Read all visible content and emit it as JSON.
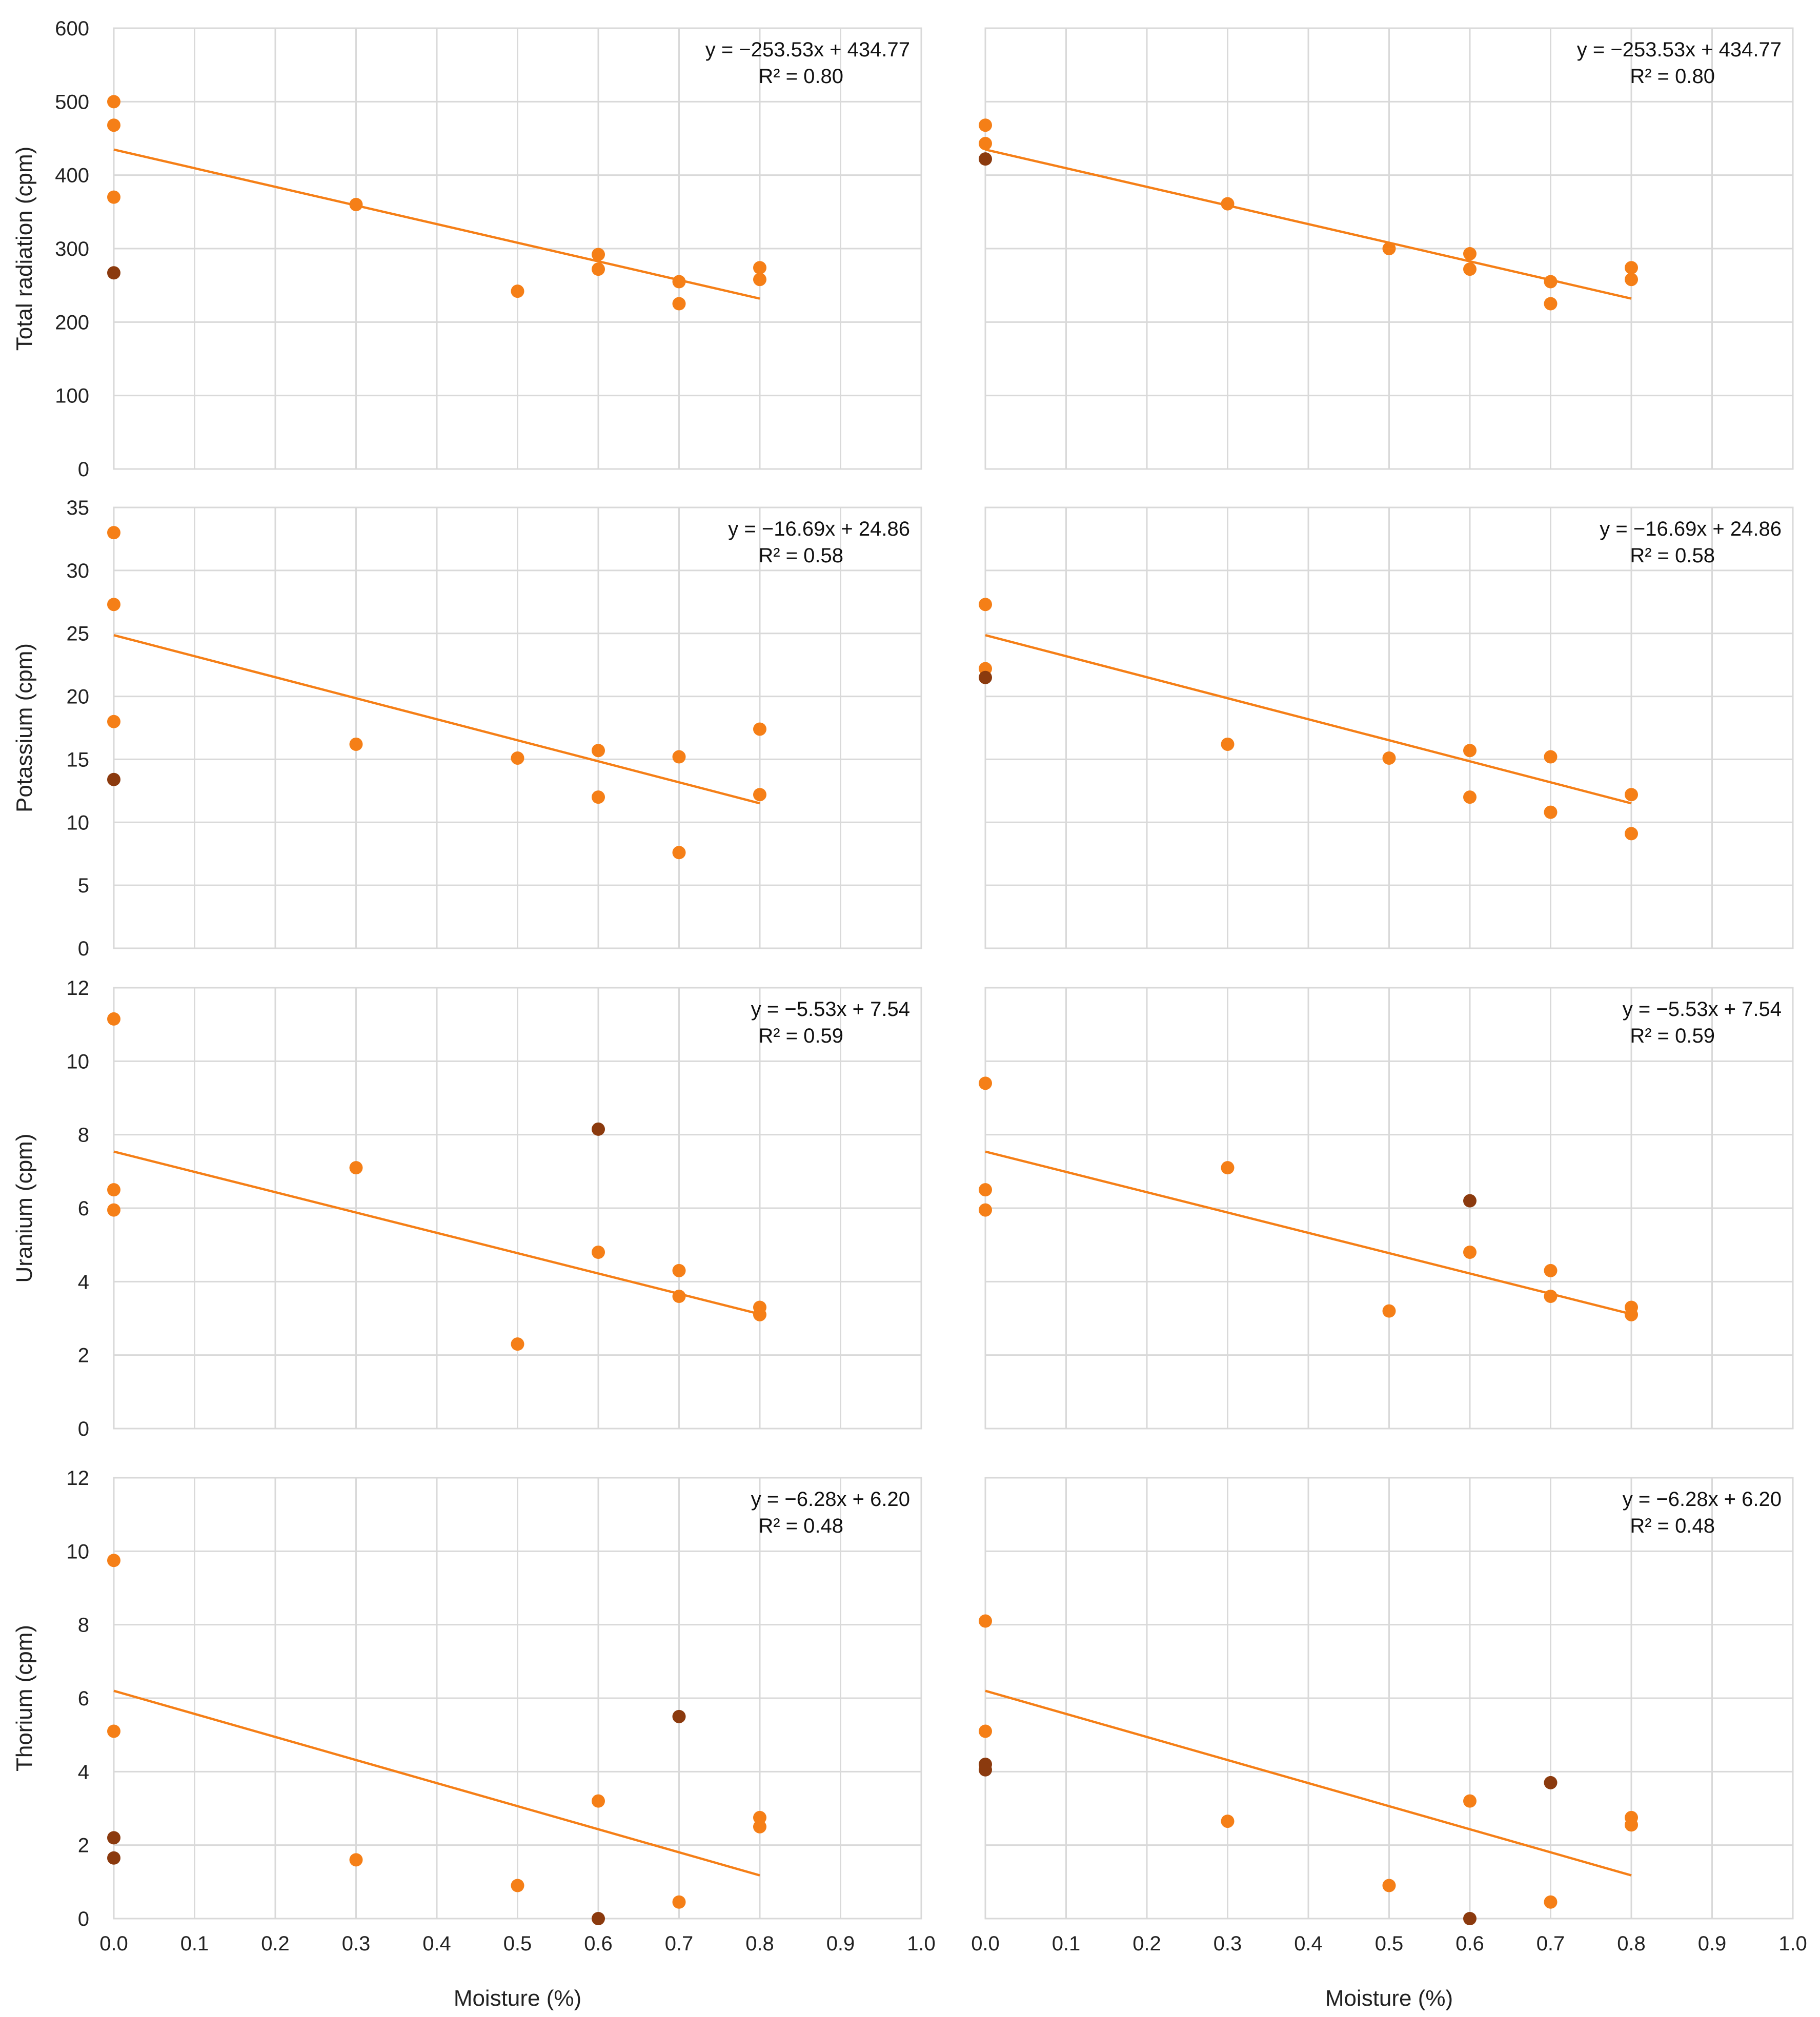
{
  "colors": {
    "point": "#F57F17",
    "highlight": "#8B3A0E",
    "trend": "#F57F17",
    "grid": "#d9d9d9"
  },
  "x_ticks": [
    "0.0",
    "0.1",
    "0.2",
    "0.3",
    "0.4",
    "0.5",
    "0.6",
    "0.7",
    "0.8",
    "0.9",
    "1.0"
  ],
  "chart_data": [
    {
      "type": "scatter",
      "panel": "top-left",
      "ylabel": "Total radiation (cpm)",
      "xlabel": "",
      "xlim": [
        0,
        1
      ],
      "ylim": [
        0,
        600
      ],
      "y_ticks": [
        "0",
        "100",
        "200",
        "300",
        "400",
        "500",
        "600"
      ],
      "equation": "y = −253.53x + 434.77",
      "r2": "R² = 0.80",
      "trend": {
        "slope": -253.53,
        "intercept": 434.77,
        "x_range": [
          0,
          0.8
        ]
      },
      "points": [
        [
          0,
          500
        ],
        [
          0,
          468
        ],
        [
          0,
          370
        ],
        [
          0.3,
          360
        ],
        [
          0.5,
          242
        ],
        [
          0.6,
          292
        ],
        [
          0.6,
          272
        ],
        [
          0.7,
          255
        ],
        [
          0.7,
          225
        ],
        [
          0.8,
          274
        ],
        [
          0.8,
          258
        ]
      ],
      "highlighted_points": [
        [
          0,
          267
        ]
      ]
    },
    {
      "type": "scatter",
      "panel": "top-right",
      "ylabel": "",
      "xlabel": "",
      "xlim": [
        0,
        1
      ],
      "ylim": [
        0,
        600
      ],
      "equation": "y = −253.53x + 434.77",
      "r2": "R² = 0.80",
      "trend": {
        "slope": -253.53,
        "intercept": 434.77,
        "x_range": [
          0,
          0.8
        ]
      },
      "points": [
        [
          0,
          468
        ],
        [
          0,
          443
        ],
        [
          0.3,
          361
        ],
        [
          0.5,
          300
        ],
        [
          0.6,
          293
        ],
        [
          0.6,
          272
        ],
        [
          0.7,
          255
        ],
        [
          0.7,
          225
        ],
        [
          0.8,
          274
        ],
        [
          0.8,
          258
        ]
      ],
      "highlighted_points": [
        [
          0,
          422
        ]
      ]
    },
    {
      "type": "scatter",
      "panel": "row2-left",
      "ylabel": "Potassium (cpm)",
      "xlabel": "",
      "xlim": [
        0,
        1
      ],
      "ylim": [
        0,
        35
      ],
      "y_ticks": [
        "0",
        "5",
        "10",
        "15",
        "20",
        "25",
        "30",
        "35"
      ],
      "equation": "y = −16.69x + 24.86",
      "r2": "R² = 0.58",
      "trend": {
        "slope": -16.69,
        "intercept": 24.86,
        "x_range": [
          0,
          0.8
        ]
      },
      "points": [
        [
          0,
          33
        ],
        [
          0,
          27.3
        ],
        [
          0,
          18
        ],
        [
          0.3,
          16.2
        ],
        [
          0.5,
          15.1
        ],
        [
          0.6,
          15.7
        ],
        [
          0.6,
          12
        ],
        [
          0.7,
          15.2
        ],
        [
          0.7,
          7.6
        ],
        [
          0.8,
          17.4
        ],
        [
          0.8,
          12.2
        ]
      ],
      "highlighted_points": [
        [
          0,
          13.4
        ]
      ]
    },
    {
      "type": "scatter",
      "panel": "row2-right",
      "ylabel": "",
      "xlabel": "",
      "xlim": [
        0,
        1
      ],
      "ylim": [
        0,
        35
      ],
      "equation": "y = −16.69x + 24.86",
      "r2": "R² = 0.58",
      "trend": {
        "slope": -16.69,
        "intercept": 24.86,
        "x_range": [
          0,
          0.8
        ]
      },
      "points": [
        [
          0,
          27.3
        ],
        [
          0,
          22.2
        ],
        [
          0.3,
          16.2
        ],
        [
          0.5,
          15.1
        ],
        [
          0.6,
          15.7
        ],
        [
          0.6,
          12
        ],
        [
          0.7,
          15.2
        ],
        [
          0.7,
          10.8
        ],
        [
          0.8,
          12.2
        ],
        [
          0.8,
          9.1
        ]
      ],
      "highlighted_points": [
        [
          0,
          21.5
        ]
      ]
    },
    {
      "type": "scatter",
      "panel": "row3-left",
      "ylabel": "Uranium (cpm)",
      "xlabel": "",
      "xlim": [
        0,
        1
      ],
      "ylim": [
        0,
        12
      ],
      "y_ticks": [
        "0",
        "2",
        "4",
        "6",
        "8",
        "10",
        "12"
      ],
      "equation": "y = −5.53x + 7.54",
      "r2": "R² = 0.59",
      "trend": {
        "slope": -5.53,
        "intercept": 7.54,
        "x_range": [
          0,
          0.8
        ]
      },
      "points": [
        [
          0,
          11.15
        ],
        [
          0,
          6.5
        ],
        [
          0,
          5.95
        ],
        [
          0.3,
          7.1
        ],
        [
          0.5,
          2.3
        ],
        [
          0.6,
          4.8
        ],
        [
          0.7,
          4.3
        ],
        [
          0.7,
          3.6
        ],
        [
          0.8,
          3.3
        ],
        [
          0.8,
          3.1
        ]
      ],
      "highlighted_points": [
        [
          0.6,
          8.15
        ]
      ]
    },
    {
      "type": "scatter",
      "panel": "row3-right",
      "ylabel": "",
      "xlabel": "",
      "xlim": [
        0,
        1
      ],
      "ylim": [
        0,
        12
      ],
      "equation": "y = −5.53x + 7.54",
      "r2": "R² = 0.59",
      "trend": {
        "slope": -5.53,
        "intercept": 7.54,
        "x_range": [
          0,
          0.8
        ]
      },
      "points": [
        [
          0,
          9.4
        ],
        [
          0,
          6.5
        ],
        [
          0,
          5.95
        ],
        [
          0.3,
          7.1
        ],
        [
          0.5,
          3.2
        ],
        [
          0.6,
          4.8
        ],
        [
          0.7,
          4.3
        ],
        [
          0.7,
          3.6
        ],
        [
          0.8,
          3.3
        ],
        [
          0.8,
          3.1
        ]
      ],
      "highlighted_points": [
        [
          0.6,
          6.2
        ]
      ]
    },
    {
      "type": "scatter",
      "panel": "bottom-left",
      "ylabel": "Thorium (cpm)",
      "xlabel": "Moisture (%)",
      "xlim": [
        0,
        1
      ],
      "ylim": [
        0,
        12
      ],
      "y_ticks": [
        "0",
        "2",
        "4",
        "6",
        "8",
        "10",
        "12"
      ],
      "equation": "y = −6.28x + 6.20",
      "r2": "R² = 0.48",
      "trend": {
        "slope": -6.28,
        "intercept": 6.2,
        "x_range": [
          0,
          0.8
        ]
      },
      "points": [
        [
          0,
          9.75
        ],
        [
          0,
          5.1
        ],
        [
          0.3,
          1.6
        ],
        [
          0.5,
          0.9
        ],
        [
          0.6,
          3.2
        ],
        [
          0.7,
          0.45
        ],
        [
          0.8,
          2.75
        ],
        [
          0.8,
          2.5
        ]
      ],
      "highlighted_points": [
        [
          0,
          2.2
        ],
        [
          0,
          1.65
        ],
        [
          0.6,
          0
        ],
        [
          0.7,
          5.5
        ]
      ]
    },
    {
      "type": "scatter",
      "panel": "bottom-right",
      "ylabel": "",
      "xlabel": "Moisture (%)",
      "xlim": [
        0,
        1
      ],
      "ylim": [
        0,
        12
      ],
      "equation": "y = −6.28x + 6.20",
      "r2": "R² = 0.48",
      "trend": {
        "slope": -6.28,
        "intercept": 6.2,
        "x_range": [
          0,
          0.8
        ]
      },
      "points": [
        [
          0,
          8.1
        ],
        [
          0,
          5.1
        ],
        [
          0.3,
          2.65
        ],
        [
          0.5,
          0.9
        ],
        [
          0.6,
          3.2
        ],
        [
          0.7,
          0.45
        ],
        [
          0.8,
          2.75
        ],
        [
          0.8,
          2.55
        ]
      ],
      "highlighted_points": [
        [
          0,
          4.2
        ],
        [
          0,
          4.05
        ],
        [
          0.6,
          0
        ],
        [
          0.7,
          3.7
        ]
      ]
    }
  ]
}
